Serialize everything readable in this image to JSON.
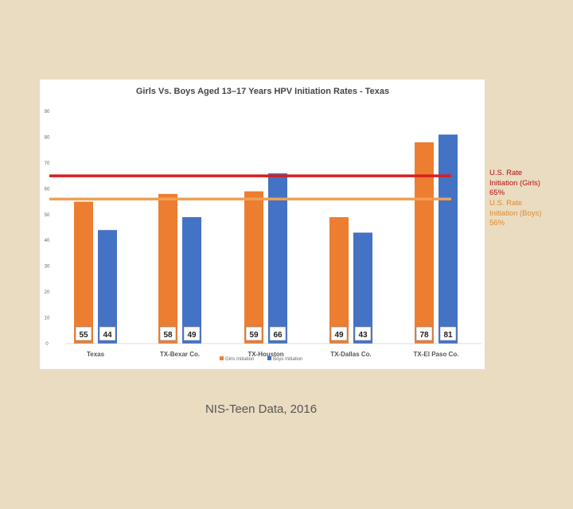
{
  "chart_data": {
    "type": "bar",
    "title": "Girls Vs. Boys Aged 13–17 Years HPV Initiation Rates - Texas",
    "categories": [
      "Texas",
      "TX-Bexar Co.",
      "TX-Houston",
      "TX-Dallas Co.",
      "TX-El Paso Co."
    ],
    "series": [
      {
        "name": "Girls Initiation",
        "color": "#ed7d31",
        "values": [
          55,
          58,
          59,
          49,
          78
        ]
      },
      {
        "name": "Boys Initiation",
        "color": "#4472c4",
        "values": [
          44,
          49,
          66,
          43,
          81
        ]
      }
    ],
    "yticks": [
      0,
      10,
      20,
      30,
      40,
      50,
      60,
      70,
      80,
      90
    ],
    "ylim": [
      0,
      90
    ],
    "grid": false,
    "legend": "bottom",
    "reference_lines": [
      {
        "label_lines": [
          "U.S. Rate",
          "Initiation (Girls)",
          "65%"
        ],
        "value": 65,
        "color": "#d42020",
        "text_color": "#b01010"
      },
      {
        "label_lines": [
          "U.S. Rate",
          "Initiation (Boys)",
          "56%"
        ],
        "value": 56,
        "color": "#f0a050",
        "text_color": "#e08a30"
      }
    ]
  },
  "source": "NIS-Teen Data, 2016"
}
